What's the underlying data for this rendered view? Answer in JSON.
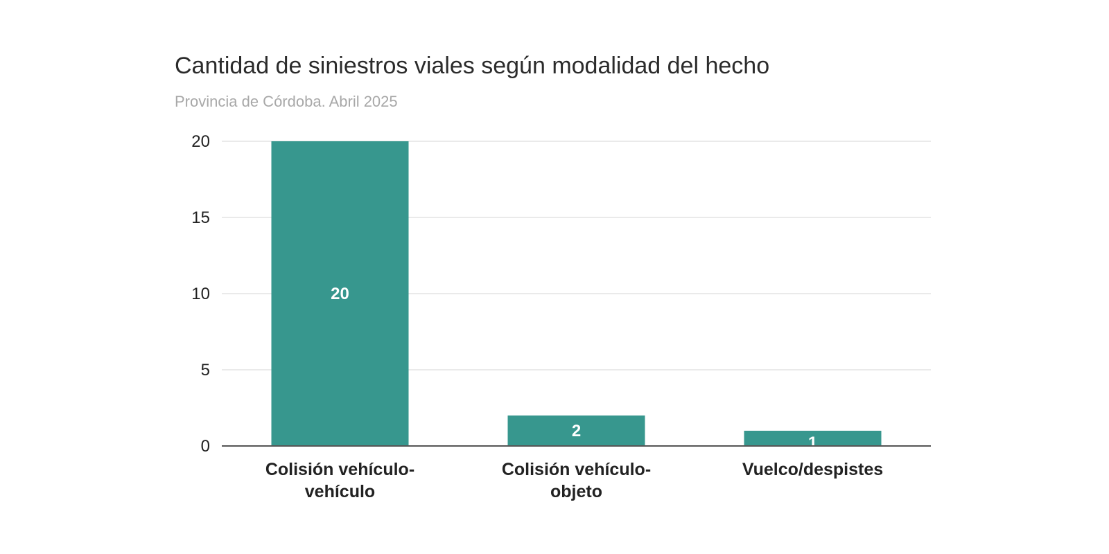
{
  "chart_data": {
    "type": "bar",
    "title": "Cantidad de siniestros viales según modalidad del hecho",
    "subtitle": "Provincia de Córdoba. Abril 2025",
    "categories": [
      [
        "Colisión vehículo-",
        "vehículo"
      ],
      [
        "Colisión vehículo-",
        "objeto"
      ],
      [
        "Vuelco/despistes"
      ]
    ],
    "values": [
      20,
      2,
      1
    ],
    "data_labels": [
      "20",
      "2",
      "1"
    ],
    "ylim": [
      0,
      20
    ],
    "yticks": [
      0,
      5,
      10,
      15,
      20
    ],
    "grid": true,
    "legend": "none",
    "xlabel": "",
    "ylabel": "",
    "colors": {
      "bar": "#37978E",
      "grid": "#e3e3e3",
      "axis": "#555555"
    }
  }
}
